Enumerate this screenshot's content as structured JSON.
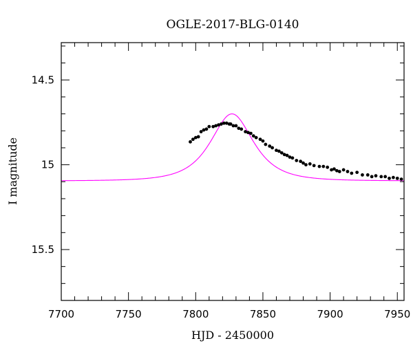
{
  "chart_data": {
    "type": "scatter",
    "title": "OGLE-2017-BLG-0140",
    "xlabel": "HJD - 2450000",
    "ylabel": "I magnitude",
    "xlim": [
      7700,
      7955
    ],
    "ylim": [
      15.8,
      14.28
    ],
    "y_inverted": true,
    "x_ticks": [
      7700,
      7750,
      7800,
      7850,
      7900,
      7950
    ],
    "y_ticks": [
      14.5,
      15,
      15.5
    ],
    "x_tick_labels": [
      "7700",
      "7750",
      "7800",
      "7850",
      "7900",
      "7950"
    ],
    "y_tick_labels": [
      "14.5",
      "15",
      "15.5"
    ],
    "x_minor_step": 10,
    "y_minor_step": 0.1,
    "grid": false,
    "colors": {
      "model": "#ff00ff",
      "data": "#000000",
      "axes": "#000000"
    },
    "model": {
      "t0": 7827,
      "tE": 21,
      "u0": 0.84,
      "baseline": 15.095,
      "peak_mag": 14.7
    },
    "series": [
      {
        "kind": "data",
        "x": [
          7796,
          7798,
          7800,
          7802,
          7804,
          7806,
          7808,
          7810,
          7813,
          7815,
          7817,
          7819,
          7821,
          7823,
          7825,
          7826,
          7828,
          7830,
          7832,
          7834,
          7837,
          7839,
          7841,
          7843,
          7845,
          7848,
          7850,
          7852,
          7855,
          7857,
          7860,
          7862,
          7864,
          7866,
          7868,
          7870,
          7872,
          7875,
          7878,
          7880,
          7882,
          7885,
          7888,
          7892,
          7895,
          7898,
          7901,
          7903,
          7905,
          7907,
          7910,
          7913,
          7916,
          7920,
          7924,
          7928,
          7931,
          7934,
          7938,
          7941,
          7944,
          7947,
          7950,
          7953
        ],
        "y": [
          14.865,
          14.85,
          14.84,
          14.835,
          14.805,
          14.795,
          14.79,
          14.775,
          14.775,
          14.77,
          14.765,
          14.76,
          14.755,
          14.755,
          14.76,
          14.76,
          14.77,
          14.77,
          14.785,
          14.79,
          14.805,
          14.81,
          14.815,
          14.83,
          14.84,
          14.85,
          14.86,
          14.88,
          14.89,
          14.9,
          14.915,
          14.92,
          14.93,
          14.94,
          14.945,
          14.955,
          14.96,
          14.975,
          14.98,
          14.99,
          15.0,
          14.995,
          15.005,
          15.01,
          15.01,
          15.015,
          15.03,
          15.025,
          15.035,
          15.04,
          15.03,
          15.04,
          15.05,
          15.045,
          15.06,
          15.06,
          15.07,
          15.065,
          15.07,
          15.07,
          15.08,
          15.075,
          15.08,
          15.085
        ]
      }
    ]
  }
}
